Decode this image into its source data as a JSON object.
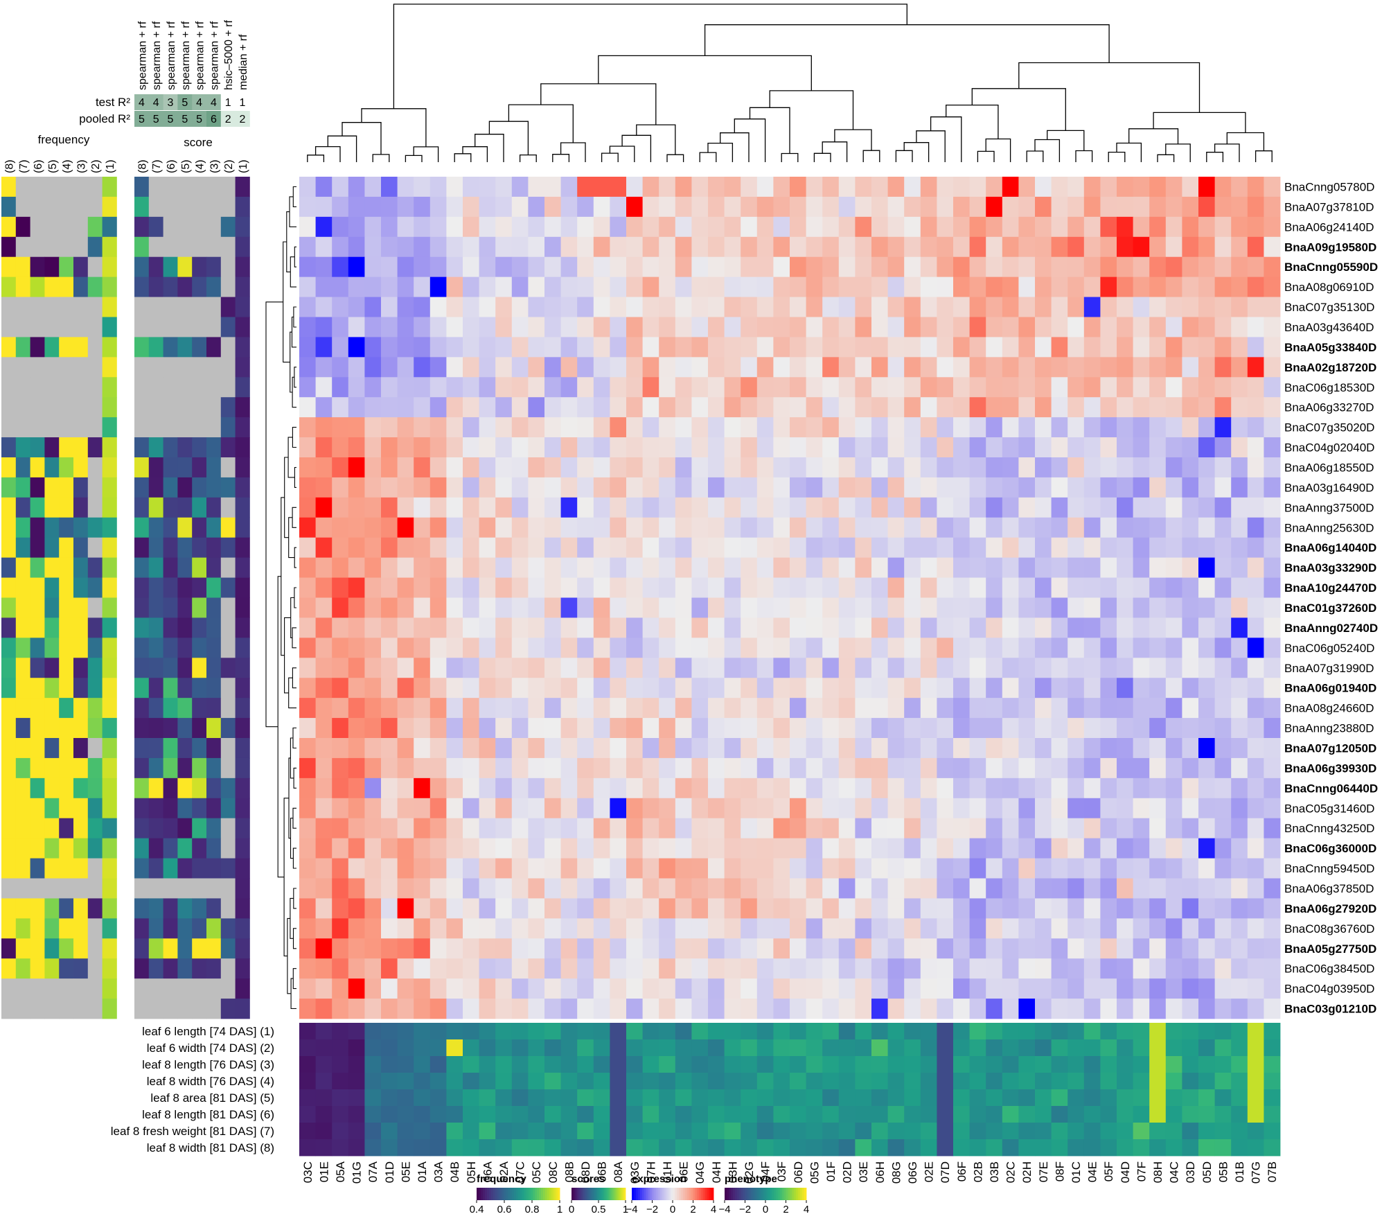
{
  "chart_data": {
    "type": "heatmap",
    "columns": [
      "03C",
      "01E",
      "05A",
      "01G",
      "07A",
      "01D",
      "05E",
      "01A",
      "03A",
      "04B",
      "05H",
      "06A",
      "02A",
      "07C",
      "05C",
      "08C",
      "08B",
      "08D",
      "06B",
      "08A",
      "03G",
      "07H",
      "01H",
      "06E",
      "04G",
      "04H",
      "03H",
      "02G",
      "04F",
      "03F",
      "06D",
      "05G",
      "01F",
      "02D",
      "03E",
      "06H",
      "08G",
      "06G",
      "02E",
      "07D",
      "06F",
      "02B",
      "03B",
      "02C",
      "02H",
      "07E",
      "08F",
      "01C",
      "04E",
      "05F",
      "04D",
      "07F",
      "08H",
      "04C",
      "03D",
      "05D",
      "05B",
      "01B",
      "07G",
      "07B"
    ],
    "genes": [
      {
        "name": "BnaCnng05780D",
        "color": "#000000"
      },
      {
        "name": "BnaA07g37810D",
        "color": "#000000"
      },
      {
        "name": "BnaA06g24140D",
        "color": "#000000"
      },
      {
        "name": "BnaA09g19580D",
        "color": "#cc0000"
      },
      {
        "name": "BnaCnng05590D",
        "color": "#cc00cc"
      },
      {
        "name": "BnaA08g06910D",
        "color": "#000000"
      },
      {
        "name": "BnaC07g35130D",
        "color": "#000000"
      },
      {
        "name": "BnaA03g43640D",
        "color": "#000000"
      },
      {
        "name": "BnaA05g33840D",
        "color": "#cc0000"
      },
      {
        "name": "BnaA02g18720D",
        "color": "#cc0000"
      },
      {
        "name": "BnaC06g18530D",
        "color": "#000000"
      },
      {
        "name": "BnaA06g33270D",
        "color": "#000000"
      },
      {
        "name": "BnaC07g35020D",
        "color": "#000000"
      },
      {
        "name": "BnaC04g02040D",
        "color": "#000000"
      },
      {
        "name": "BnaA06g18550D",
        "color": "#000000"
      },
      {
        "name": "BnaA03g16490D",
        "color": "#000000"
      },
      {
        "name": "BnaAnng37500D",
        "color": "#000000"
      },
      {
        "name": "BnaAnng25630D",
        "color": "#000000"
      },
      {
        "name": "BnaA06g14040D",
        "color": "#cc0000"
      },
      {
        "name": "BnaA03g33290D",
        "color": "#0000bb"
      },
      {
        "name": "BnaA10g24470D",
        "color": "#cc00cc"
      },
      {
        "name": "BnaC01g37260D",
        "color": "#cc00cc"
      },
      {
        "name": "BnaAnng02740D",
        "color": "#0000bb"
      },
      {
        "name": "BnaC06g05240D",
        "color": "#000000"
      },
      {
        "name": "BnaA07g31990D",
        "color": "#000000"
      },
      {
        "name": "BnaA06g01940D",
        "color": "#cc0000"
      },
      {
        "name": "BnaA08g24660D",
        "color": "#000000"
      },
      {
        "name": "BnaAnng23880D",
        "color": "#000000"
      },
      {
        "name": "BnaA07g12050D",
        "color": "#cc00cc"
      },
      {
        "name": "BnaA06g39930D",
        "color": "#cc0000"
      },
      {
        "name": "BnaCnng06440D",
        "color": "#cc0000"
      },
      {
        "name": "BnaC05g31460D",
        "color": "#000000"
      },
      {
        "name": "BnaCnng43250D",
        "color": "#000000"
      },
      {
        "name": "BnaC06g36000D",
        "color": "#0000bb"
      },
      {
        "name": "BnaCnng59450D",
        "color": "#000000"
      },
      {
        "name": "BnaA06g37850D",
        "color": "#000000"
      },
      {
        "name": "BnaA06g27920D",
        "color": "#cc0000"
      },
      {
        "name": "BnaC08g36760D",
        "color": "#000000"
      },
      {
        "name": "BnaA05g27750D",
        "color": "#cc0000"
      },
      {
        "name": "BnaC06g38450D",
        "color": "#000000"
      },
      {
        "name": "BnaC04g03950D",
        "color": "#000000"
      },
      {
        "name": "BnaC03g01210D",
        "color": "#cc0000"
      }
    ],
    "phenotypes": [
      "leaf 6 length [74 DAS] (1)",
      "leaf 6 width [74 DAS] (2)",
      "leaf 8 length [76 DAS] (3)",
      "leaf 8 width [76 DAS] (4)",
      "leaf 8 area [81 DAS] (5)",
      "leaf 8 length [81 DAS] (6)",
      "leaf 8 fresh weight [81 DAS] (7)",
      "leaf 8 width [81 DAS] (8)"
    ],
    "side_columns": [
      "(8)",
      "(7)",
      "(6)",
      "(5)",
      "(4)",
      "(3)",
      "(2)",
      "(1)"
    ],
    "side_titles": {
      "frequency": "frequency",
      "score": "score"
    },
    "methods": [
      "spearman + rf",
      "spearman + rf",
      "spearman + rf",
      "spearman + rf",
      "spearman + rf",
      "spearman + rf",
      "hsic–5000 + rf",
      "median + rf"
    ],
    "r2_rows": [
      {
        "label": "test R²",
        "values": [
          "4",
          "4",
          "3",
          "5",
          "4",
          "4",
          "1",
          "1"
        ]
      },
      {
        "label": "pooled R²",
        "values": [
          "5",
          "5",
          "5",
          "5",
          "5",
          "6",
          "2",
          "2"
        ]
      }
    ],
    "r2_numeric": {
      "test": [
        4,
        4,
        3,
        5,
        4,
        4,
        1,
        1
      ],
      "pooled": [
        5,
        5,
        5,
        5,
        5,
        6,
        2,
        2
      ]
    },
    "legends": [
      {
        "title": "frequency",
        "palette": "viridis",
        "ticks": [
          "0.4",
          "0.6",
          "0.8",
          "1"
        ],
        "range": [
          0.4,
          1.0
        ]
      },
      {
        "title": "scores",
        "palette": "viridis",
        "ticks": [
          "0",
          "0.5",
          "1"
        ],
        "range": [
          0,
          1
        ]
      },
      {
        "title": "expression",
        "palette": "bwr",
        "ticks": [
          "−4",
          "−2",
          "0",
          "2",
          "4"
        ],
        "range": [
          -4,
          4
        ]
      },
      {
        "title": "phenotype",
        "palette": "viridis",
        "ticks": [
          "−4",
          "−2",
          "0",
          "2",
          "4"
        ],
        "range": [
          -4,
          4
        ]
      }
    ],
    "colors": {
      "missing": "#bebebe",
      "red": "#ff0000",
      "blue": "#0000ff",
      "neutral": "#eeeeee"
    },
    "expression_note": "approximate z-scored values, 42 genes x 60 samples"
  }
}
